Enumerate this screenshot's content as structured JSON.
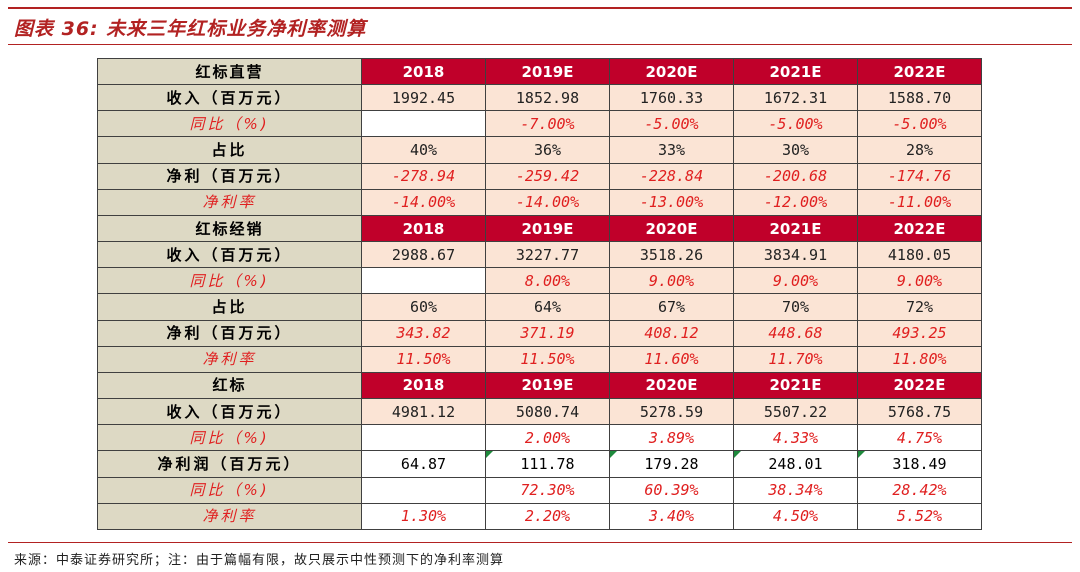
{
  "title": "图表 36:  未来三年红标业务净利率测算",
  "source": "来源：中泰证券研究所；注：由于篇幅有限，故只展示中性预测下的净利率测算",
  "colors": {
    "accent": "#b22222",
    "header_bg": "#c0002a",
    "label_bg": "#ddd9c4",
    "value_bg": "#fbe4d5",
    "negative_text": "#e02020"
  },
  "sections": [
    {
      "header": {
        "label": "红标直营",
        "years": [
          "2018",
          "2019E",
          "2020E",
          "2021E",
          "2022E"
        ]
      },
      "rows": [
        {
          "label": "收入（百万元）",
          "values": [
            "1992.45",
            "1852.98",
            "1760.33",
            "1672.31",
            "1588.70"
          ]
        },
        {
          "label": "同比（%)",
          "values": [
            "",
            "-7.00%",
            "-5.00%",
            "-5.00%",
            "-5.00%"
          ]
        },
        {
          "label": "占比",
          "values": [
            "40%",
            "36%",
            "33%",
            "30%",
            "28%"
          ]
        },
        {
          "label": "净利（百万元）",
          "values": [
            "-278.94",
            "-259.42",
            "-228.84",
            "-200.68",
            "-174.76"
          ]
        },
        {
          "label": "净利率",
          "values": [
            "-14.00%",
            "-14.00%",
            "-13.00%",
            "-12.00%",
            "-11.00%"
          ]
        }
      ]
    },
    {
      "header": {
        "label": "红标经销",
        "years": [
          "2018",
          "2019E",
          "2020E",
          "2021E",
          "2022E"
        ]
      },
      "rows": [
        {
          "label": "收入（百万元）",
          "values": [
            "2988.67",
            "3227.77",
            "3518.26",
            "3834.91",
            "4180.05"
          ]
        },
        {
          "label": "同比（%)",
          "values": [
            "",
            "8.00%",
            "9.00%",
            "9.00%",
            "9.00%"
          ]
        },
        {
          "label": "占比",
          "values": [
            "60%",
            "64%",
            "67%",
            "70%",
            "72%"
          ]
        },
        {
          "label": "净利（百万元）",
          "values": [
            "343.82",
            "371.19",
            "408.12",
            "448.68",
            "493.25"
          ]
        },
        {
          "label": "净利率",
          "values": [
            "11.50%",
            "11.50%",
            "11.60%",
            "11.70%",
            "11.80%"
          ]
        }
      ]
    },
    {
      "header": {
        "label": "红标",
        "years": [
          "2018",
          "2019E",
          "2020E",
          "2021E",
          "2022E"
        ]
      },
      "rows": [
        {
          "label": "收入（百万元）",
          "values": [
            "4981.12",
            "5080.74",
            "5278.59",
            "5507.22",
            "5768.75"
          ]
        },
        {
          "label": "同比（%)",
          "values": [
            "",
            "2.00%",
            "3.89%",
            "4.33%",
            "4.75%"
          ]
        },
        {
          "label": "净利润（百万元）",
          "values": [
            "64.87",
            "111.78",
            "179.28",
            "248.01",
            "318.49"
          ]
        },
        {
          "label": "同比（%)",
          "values": [
            "",
            "72.30%",
            "60.39%",
            "38.34%",
            "28.42%"
          ]
        },
        {
          "label": "净利率",
          "values": [
            "1.30%",
            "2.20%",
            "3.40%",
            "4.50%",
            "5.52%"
          ]
        }
      ]
    }
  ]
}
